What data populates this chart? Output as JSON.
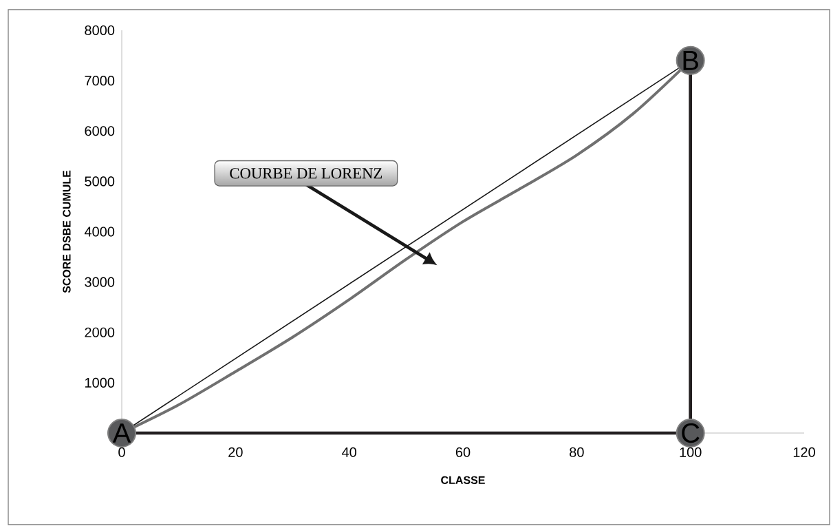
{
  "chart_data": {
    "type": "line",
    "xlabel": "CLASSE",
    "ylabel": "SCORE DSBE CUMULE",
    "xlim": [
      0,
      120
    ],
    "ylim": [
      0,
      8000
    ],
    "xticks": [
      0,
      20,
      40,
      60,
      80,
      100,
      120
    ],
    "yticks": [
      0,
      1000,
      2000,
      3000,
      4000,
      5000,
      6000,
      7000,
      8000
    ],
    "grid": false,
    "marker": "none",
    "line_style": "solid",
    "series": [
      {
        "color": "#1a1a1a",
        "x": [
          0,
          100
        ],
        "values": [
          0,
          7400
        ]
      },
      {
        "color": "#707070",
        "x": [
          0,
          10,
          20,
          30,
          40,
          50,
          60,
          70,
          80,
          90,
          100
        ],
        "values": [
          0,
          560,
          1220,
          1900,
          2650,
          3450,
          4200,
          4850,
          5520,
          6350,
          7400
        ]
      },
      {
        "color": "#231f20",
        "x": [
          100,
          100
        ],
        "values": [
          0,
          7400
        ]
      },
      {
        "color": "#231f20",
        "x": [
          0,
          100
        ],
        "values": [
          0,
          0
        ]
      },
      {
        "type": "scatter",
        "color": "#58595b",
        "x": [
          0,
          100,
          100
        ],
        "values": [
          0,
          7400,
          0
        ],
        "value_labels": [
          "A",
          "B",
          "C"
        ]
      }
    ],
    "annotations": [
      "COURBE DE LORENZ"
    ]
  }
}
